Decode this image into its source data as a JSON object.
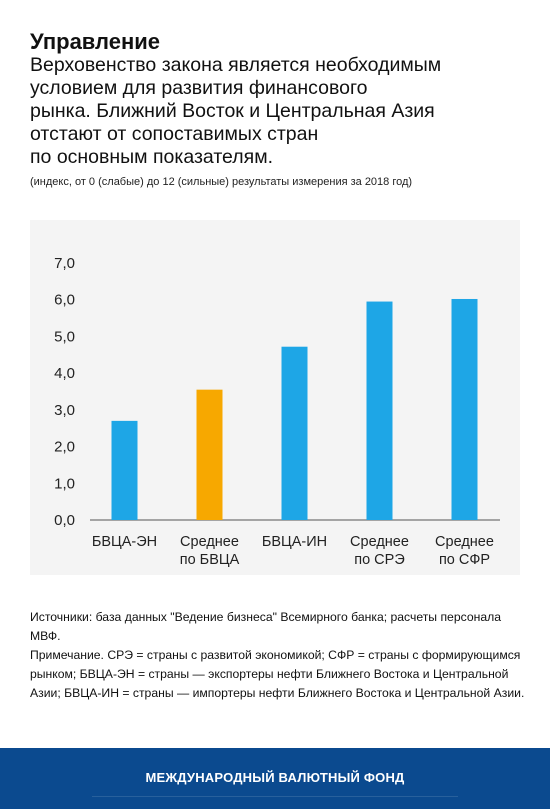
{
  "header": {
    "title": "Управление",
    "subtitle_lines": [
      "Верховенство закона является необходимым",
      "условием для развития финансового",
      "рынка. Ближний Восток и Центральная Азия",
      "отстают от сопоставимых стран",
      "по основным показателям."
    ],
    "units": "(индекс, от 0 (слабые) до 12 (сильные) результаты измерения за 2018 год)"
  },
  "chart_data": {
    "type": "bar",
    "categories": [
      "БВЦА-ЭН",
      "Среднее\nпо БВЦА",
      "БВЦА-ИН",
      "Среднее\nпо СРЭ",
      "Среднее\nпо СФР"
    ],
    "values": [
      2.7,
      3.55,
      4.72,
      5.95,
      6.02
    ],
    "ylim": [
      0,
      7
    ],
    "yticks": [
      "0,0",
      "1,0",
      "2,0",
      "3,0",
      "4,0",
      "5,0",
      "6,0",
      "7,0"
    ],
    "colors": [
      "#1ea6e6",
      "#f7a800",
      "#1ea6e6",
      "#1ea6e6",
      "#1ea6e6"
    ],
    "grid": false,
    "xlabel": "",
    "ylabel": ""
  },
  "notes": {
    "sources": "Источники: база данных \"Ведение бизнеса\" Всемирного банка; расчеты персонала МВФ.",
    "note": "Примечание. СРЭ = страны с развитой экономикой; СФР = страны с формирующимся рынком; БВЦА-ЭН = страны — экспортеры нефти Ближнего Востока и Центральной Азии; БВЦА-ИН = страны — импортеры нефти Ближнего Востока и Центральной Азии."
  },
  "footer": {
    "label": "МЕЖДУНАРОДНЫЙ ВАЛЮТНЫЙ ФОНД",
    "background": "#0b4a8f"
  }
}
